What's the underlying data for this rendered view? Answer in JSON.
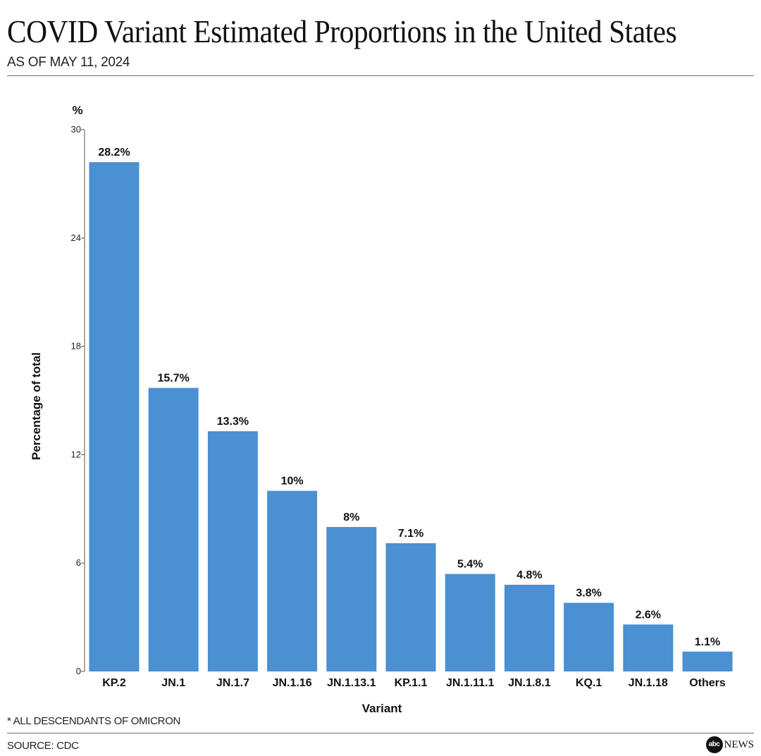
{
  "header": {
    "title": "COVID Variant Estimated Proportions in the United States",
    "subtitle": "AS OF MAY 11, 2024"
  },
  "footer": {
    "footnote": "* ALL DESCENDANTS OF OMICRON",
    "source": "SOURCE: CDC",
    "logo_mark": "abc",
    "logo_text": "NEWS"
  },
  "chart_data": {
    "type": "bar",
    "title": "COVID Variant Estimated Proportions in the United States",
    "subtitle": "AS OF MAY 11, 2024",
    "xlabel": "Variant",
    "ylabel": "Percentage of total",
    "yunit": "%",
    "ylim": [
      0,
      30
    ],
    "yticks": [
      0,
      6,
      12,
      18,
      24,
      30
    ],
    "grid": false,
    "bar_color": "#4a90d2",
    "categories": [
      "KP.2",
      "JN.1",
      "JN.1.7",
      "JN.1.16",
      "JN.1.13.1",
      "KP.1.1",
      "JN.1.11.1",
      "JN.1.8.1",
      "KQ.1",
      "JN.1.18",
      "Others"
    ],
    "values": [
      28.2,
      15.7,
      13.3,
      10,
      8,
      7.1,
      5.4,
      4.8,
      3.8,
      2.6,
      1.1
    ],
    "value_labels": [
      "28.2%",
      "15.7%",
      "13.3%",
      "10%",
      "8%",
      "7.1%",
      "5.4%",
      "4.8%",
      "3.8%",
      "2.6%",
      "1.1%"
    ]
  }
}
